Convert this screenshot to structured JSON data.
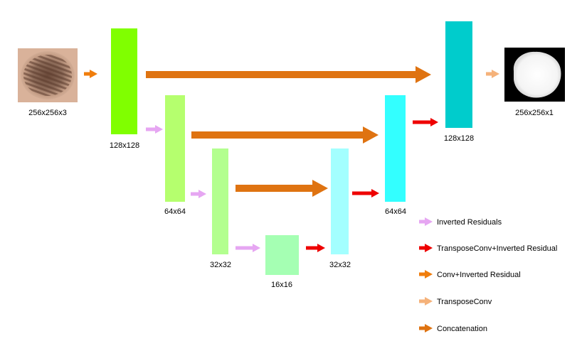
{
  "colors": {
    "inverted_residual": "#e6a6f2",
    "transpose_inverted": "#ee0000",
    "conv_inverted": "#f07d0c",
    "transpose_conv": "#f5b27a",
    "concatenation": "#df7311",
    "block_128_enc": "#80ff00",
    "block_64_enc": "#b5ff6e",
    "block_32_enc": "#b3ff8f",
    "block_16": "#a5ffb3",
    "block_32_dec": "#a3ffff",
    "block_64_dec": "#33ffff",
    "block_128_dec": "#00cccc"
  },
  "input_image": {
    "label": "256x256x3"
  },
  "output_image": {
    "label": "256x256x1"
  },
  "blocks": {
    "enc_128": {
      "label": "128x128"
    },
    "enc_64": {
      "label": "64x64"
    },
    "enc_32": {
      "label": "32x32"
    },
    "bottleneck_16": {
      "label": "16x16"
    },
    "dec_32": {
      "label": "32x32"
    },
    "dec_64": {
      "label": "64x64"
    },
    "dec_128": {
      "label": "128x128"
    }
  },
  "legend": {
    "inverted_residuals": "Inverted Residuals",
    "transpose_inverted": "TransposeConv+Inverted Residual",
    "conv_inverted": "Conv+Inverted Residual",
    "transpose_conv": "TransposeConv",
    "concatenation": "Concatenation"
  }
}
